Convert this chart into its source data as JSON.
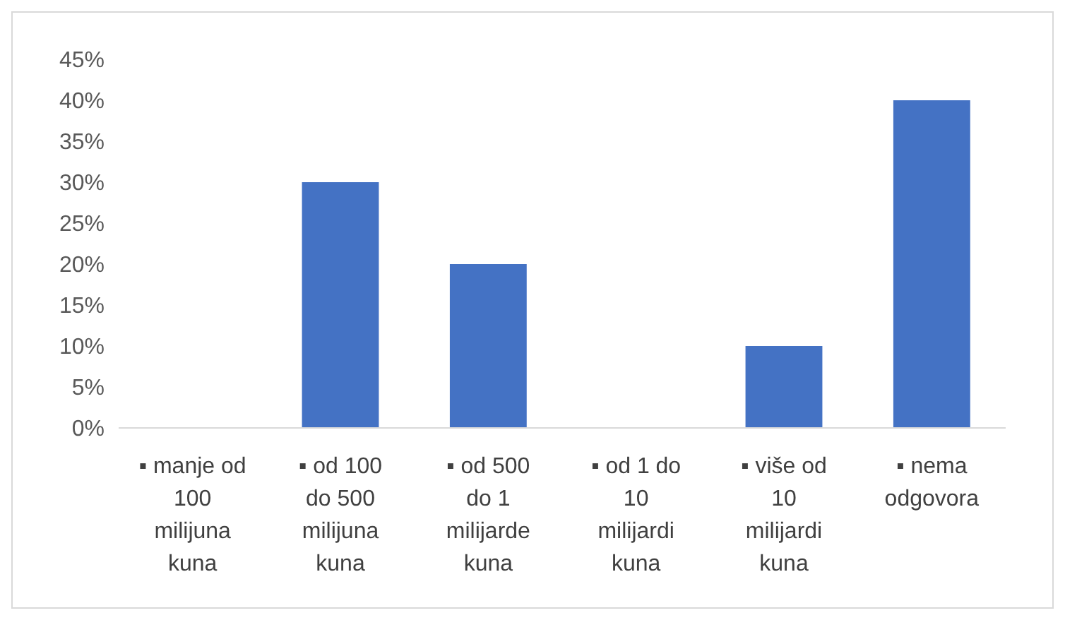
{
  "chart_data": {
    "type": "bar",
    "categories": [
      "▪ manje od 100 milijuna kuna",
      "▪ od 100 do 500 milijuna kuna",
      "▪ od 500 do 1 milijarde kuna",
      "▪ od 1 do 10 milijardi kuna",
      "▪ više od 10 milijardi kuna",
      "▪ nema odgovora"
    ],
    "values": [
      0,
      30,
      20,
      0,
      10,
      40
    ],
    "color": "#4472c4",
    "ylim": [
      0,
      45
    ],
    "yticks": [
      {
        "value": 0,
        "label": "0%"
      },
      {
        "value": 5,
        "label": "5%"
      },
      {
        "value": 10,
        "label": "10%"
      },
      {
        "value": 15,
        "label": "15%"
      },
      {
        "value": 20,
        "label": "20%"
      },
      {
        "value": 25,
        "label": "25%"
      },
      {
        "value": 30,
        "label": "30%"
      },
      {
        "value": 35,
        "label": "35%"
      },
      {
        "value": 40,
        "label": "40%"
      },
      {
        "value": 45,
        "label": "45%"
      }
    ],
    "grid": false
  }
}
